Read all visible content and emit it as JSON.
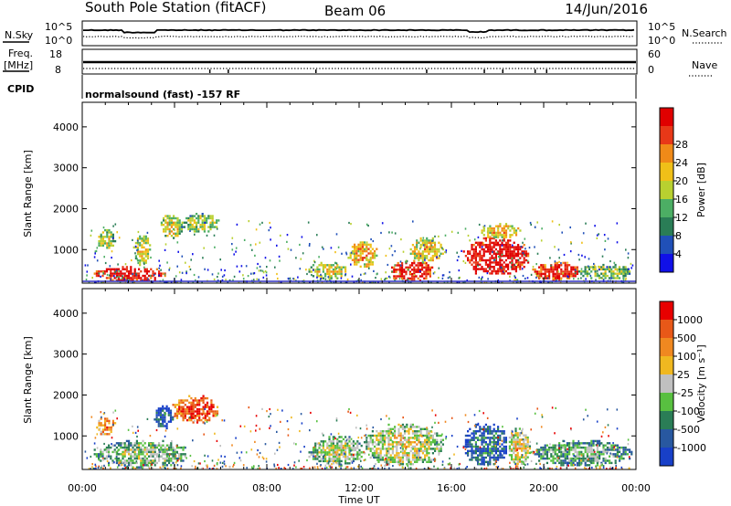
{
  "header": {
    "station": "South Pole Station (fitACF)",
    "beam": "Beam 06",
    "date": "14/Jun/2016"
  },
  "top_panels": {
    "nsky_label": "N.Sky",
    "nsky_ticks_left": [
      "10^5",
      "10^0"
    ],
    "nsearch_label": "N.Search",
    "nsearch_ticks_right": [
      "10^5",
      "10^0"
    ],
    "freq_label_1": "Freq.",
    "freq_label_2": "[MHz]",
    "freq_ticks": [
      "18",
      "8"
    ],
    "nave_label": "Nave",
    "nave_ticks": [
      "60",
      "0"
    ],
    "cpid_label": "CPID",
    "cpid_text": "normalsound (fast) -157 RF"
  },
  "axes": {
    "ylabel": "Slant Range [km]",
    "xlabel": "Time UT",
    "yticks": [
      1000,
      2000,
      3000,
      4000
    ],
    "ytick_labels": [
      "1000",
      "2000",
      "3000",
      "4000"
    ],
    "xticks": [
      0,
      4,
      8,
      12,
      16,
      20,
      24
    ],
    "xtick_labels": [
      "00:00",
      "04:00",
      "08:00",
      "12:00",
      "16:00",
      "20:00",
      "00:00"
    ],
    "ylim": [
      180,
      4600
    ],
    "xlim_hours": [
      0,
      24
    ]
  },
  "power_scale": {
    "label": "Power [dB]",
    "tick_labels": [
      "4",
      "8",
      "12",
      "16",
      "20",
      "24",
      "28"
    ],
    "colors": [
      "#1010e8",
      "#2050b8",
      "#2a7d56",
      "#4cae64",
      "#b8d030",
      "#f0c018",
      "#f08a18",
      "#e83818",
      "#e00000"
    ]
  },
  "velocity_scale": {
    "label": "Velocity [m s⁻¹]",
    "tick_labels": [
      "1000",
      "500",
      "100",
      "25",
      "-25",
      "-100",
      "-500",
      "-1000"
    ],
    "colors": [
      "#1840c8",
      "#2858a0",
      "#2a7d56",
      "#58c040",
      "#c0c0c0",
      "#f0b820",
      "#f08820",
      "#e85818",
      "#e80000"
    ]
  },
  "chart_data": [
    {
      "type": "heatmap",
      "name": "Power",
      "xlabel": "Time UT",
      "ylabel": "Slant Range [km]",
      "xlim": [
        0,
        24
      ],
      "ylim": [
        180,
        4600
      ],
      "regions": [
        {
          "t0": 0.5,
          "t1": 3.6,
          "r0": 250,
          "r1": 600,
          "level": 0.85
        },
        {
          "t0": 0.6,
          "t1": 1.4,
          "r0": 1050,
          "r1": 1500,
          "level": 0.4
        },
        {
          "t0": 2.2,
          "t1": 2.9,
          "r0": 600,
          "r1": 1400,
          "level": 0.45
        },
        {
          "t0": 3.4,
          "t1": 4.3,
          "r0": 1300,
          "r1": 1900,
          "level": 0.45
        },
        {
          "t0": 4.3,
          "t1": 5.9,
          "r0": 1450,
          "r1": 1900,
          "level": 0.35
        },
        {
          "t0": 9.8,
          "t1": 11.4,
          "r0": 300,
          "r1": 700,
          "level": 0.45
        },
        {
          "t0": 11.5,
          "t1": 12.8,
          "r0": 600,
          "r1": 1200,
          "level": 0.55
        },
        {
          "t0": 13.3,
          "t1": 15.2,
          "r0": 250,
          "r1": 750,
          "level": 0.85
        },
        {
          "t0": 14.2,
          "t1": 15.6,
          "r0": 700,
          "r1": 1300,
          "level": 0.5
        },
        {
          "t0": 16.5,
          "t1": 19.3,
          "r0": 400,
          "r1": 1300,
          "level": 0.9
        },
        {
          "t0": 17.2,
          "t1": 19.0,
          "r0": 1300,
          "r1": 1650,
          "level": 0.5
        },
        {
          "t0": 19.5,
          "t1": 21.5,
          "r0": 250,
          "r1": 700,
          "level": 0.8
        },
        {
          "t0": 21.5,
          "t1": 23.8,
          "r0": 300,
          "r1": 650,
          "level": 0.35
        }
      ]
    },
    {
      "type": "heatmap",
      "name": "Velocity",
      "xlabel": "Time UT",
      "ylabel": "Slant Range [km]",
      "xlim": [
        0,
        24
      ],
      "ylim": [
        180,
        4600
      ],
      "regions": [
        {
          "t0": 0.5,
          "t1": 4.5,
          "r0": 250,
          "r1": 900,
          "level": 0.3
        },
        {
          "t0": 0.6,
          "t1": 1.4,
          "r0": 1050,
          "r1": 1500,
          "level": 0.65
        },
        {
          "t0": 3.1,
          "t1": 3.9,
          "r0": 1200,
          "r1": 1750,
          "level": 0.05
        },
        {
          "t0": 3.9,
          "t1": 5.9,
          "r0": 1350,
          "r1": 2000,
          "level": 0.75
        },
        {
          "t0": 9.8,
          "t1": 12.2,
          "r0": 300,
          "r1": 1000,
          "level": 0.35
        },
        {
          "t0": 12.2,
          "t1": 15.6,
          "r0": 300,
          "r1": 1300,
          "level": 0.4
        },
        {
          "t0": 16.5,
          "t1": 18.4,
          "r0": 300,
          "r1": 1300,
          "level": 0.1
        },
        {
          "t0": 18.4,
          "t1": 19.4,
          "r0": 300,
          "r1": 1200,
          "level": 0.45
        },
        {
          "t0": 19.5,
          "t1": 23.8,
          "r0": 300,
          "r1": 900,
          "level": 0.25
        }
      ]
    }
  ]
}
